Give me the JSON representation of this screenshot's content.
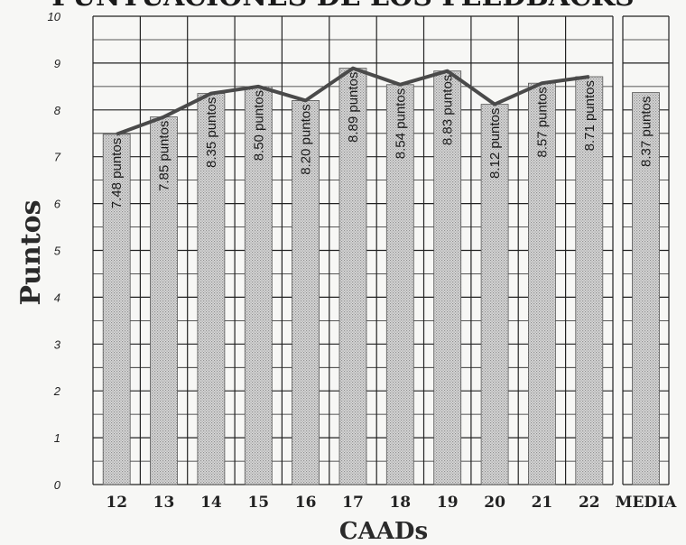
{
  "chart_data": {
    "type": "bar",
    "title": "PUNTUACIONES DE LOS FEEDBACKS",
    "xlabel": "CAADs",
    "ylabel": "Puntos",
    "ylim": [
      0,
      10
    ],
    "yticks": [
      "0",
      "1",
      "2",
      "3",
      "4",
      "5",
      "6",
      "7",
      "8",
      "9",
      "10"
    ],
    "categories": [
      "12",
      "13",
      "14",
      "15",
      "16",
      "17",
      "18",
      "19",
      "20",
      "21",
      "22"
    ],
    "values": [
      7.48,
      7.85,
      8.35,
      8.5,
      8.2,
      8.89,
      8.54,
      8.83,
      8.12,
      8.57,
      8.71
    ],
    "bar_labels": [
      "7.48 puntos",
      "7.85 puntos",
      "8.35 puntos",
      "8.50 puntos",
      "8.20 puntos",
      "8.89 puntos",
      "8.54 puntos",
      "8.83 puntos",
      "8.12 puntos",
      "8.57 puntos",
      "8.71 puntos"
    ],
    "mean_category": "MEDIA",
    "mean_value": 8.37,
    "mean_label": "8.37 puntos",
    "grid": true,
    "trend_line": true,
    "colors": {
      "bar_fill": "#c9c9c9",
      "line": "#4a4a4a",
      "grid": "#222222",
      "background": "#f7f7f5"
    }
  }
}
